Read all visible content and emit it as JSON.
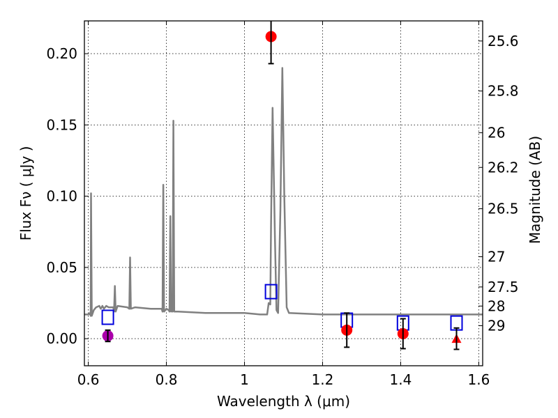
{
  "chart_data": {
    "type": "scatter",
    "title": "",
    "xlabel": "Wavelength  λ (μm)",
    "ylabel": "Flux  Fν  ( μJy )",
    "ylabel2": "Magnitude (AB)",
    "xlim": [
      0.59,
      1.61
    ],
    "ylim": [
      -0.019,
      0.223
    ],
    "grid": true,
    "x_ticks": [
      {
        "value": 0.6,
        "label": "0.6"
      },
      {
        "value": 0.8,
        "label": "0.8"
      },
      {
        "value": 1.0,
        "label": "1"
      },
      {
        "value": 1.2,
        "label": "1.2"
      },
      {
        "value": 1.4,
        "label": "1.4"
      },
      {
        "value": 1.6,
        "label": "1.6"
      }
    ],
    "y_ticks": [
      {
        "value": 0.0,
        "label": "0.00"
      },
      {
        "value": 0.05,
        "label": "0.05"
      },
      {
        "value": 0.1,
        "label": "0.10"
      },
      {
        "value": 0.15,
        "label": "0.15"
      },
      {
        "value": 0.2,
        "label": "0.20"
      }
    ],
    "y2_ticks": [
      {
        "flux": 0.2089,
        "label": "25.6"
      },
      {
        "flux": 0.1738,
        "label": "25.8"
      },
      {
        "flux": 0.1445,
        "label": "26"
      },
      {
        "flux": 0.1202,
        "label": "26.2"
      },
      {
        "flux": 0.0912,
        "label": "26.5"
      },
      {
        "flux": 0.0575,
        "label": "27"
      },
      {
        "flux": 0.0363,
        "label": "27.5"
      },
      {
        "flux": 0.0229,
        "label": "28"
      },
      {
        "flux": 0.0091,
        "label": "29"
      }
    ],
    "series": [
      {
        "kind": "line",
        "color": "#808080",
        "points": [
          [
            0.585,
            0.017
          ],
          [
            0.6,
            0.017
          ],
          [
            0.604,
            0.018
          ],
          [
            0.606,
            0.016
          ],
          [
            0.607,
            0.102
          ],
          [
            0.609,
            0.016
          ],
          [
            0.614,
            0.02
          ],
          [
            0.62,
            0.022
          ],
          [
            0.628,
            0.023
          ],
          [
            0.632,
            0.021
          ],
          [
            0.636,
            0.023
          ],
          [
            0.64,
            0.021
          ],
          [
            0.646,
            0.023
          ],
          [
            0.652,
            0.022
          ],
          [
            0.658,
            0.022
          ],
          [
            0.664,
            0.022
          ],
          [
            0.666,
            0.019
          ],
          [
            0.668,
            0.037
          ],
          [
            0.67,
            0.019
          ],
          [
            0.675,
            0.023
          ],
          [
            0.7,
            0.022
          ],
          [
            0.705,
            0.021
          ],
          [
            0.707,
            0.057
          ],
          [
            0.709,
            0.021
          ],
          [
            0.72,
            0.022
          ],
          [
            0.76,
            0.021
          ],
          [
            0.788,
            0.021
          ],
          [
            0.79,
            0.019
          ],
          [
            0.792,
            0.108
          ],
          [
            0.794,
            0.019
          ],
          [
            0.8,
            0.021
          ],
          [
            0.806,
            0.02
          ],
          [
            0.808,
            0.019
          ],
          [
            0.81,
            0.086
          ],
          [
            0.812,
            0.019
          ],
          [
            0.814,
            0.02
          ],
          [
            0.816,
            0.019
          ],
          [
            0.818,
            0.153
          ],
          [
            0.82,
            0.019
          ],
          [
            0.83,
            0.019
          ],
          [
            0.9,
            0.018
          ],
          [
            0.96,
            0.018
          ],
          [
            1.0,
            0.018
          ],
          [
            1.04,
            0.017
          ],
          [
            1.058,
            0.017
          ],
          [
            1.062,
            0.025
          ],
          [
            1.066,
            0.024
          ],
          [
            1.068,
            0.08
          ],
          [
            1.072,
            0.162
          ],
          [
            1.078,
            0.07
          ],
          [
            1.082,
            0.02
          ],
          [
            1.086,
            0.018
          ],
          [
            1.092,
            0.09
          ],
          [
            1.097,
            0.19
          ],
          [
            1.102,
            0.1
          ],
          [
            1.108,
            0.022
          ],
          [
            1.114,
            0.018
          ],
          [
            1.2,
            0.017
          ],
          [
            1.3,
            0.017
          ],
          [
            1.4,
            0.017
          ],
          [
            1.5,
            0.017
          ],
          [
            1.6,
            0.017
          ],
          [
            1.615,
            0.017
          ]
        ]
      },
      {
        "kind": "squares",
        "color": "#0000dd",
        "points": [
          [
            0.65,
            0.015
          ],
          [
            1.068,
            0.033
          ],
          [
            1.262,
            0.013
          ],
          [
            1.406,
            0.011
          ],
          [
            1.543,
            0.011
          ]
        ]
      },
      {
        "kind": "circles",
        "color": "#ff0000",
        "points": [
          {
            "x": 1.068,
            "y": 0.212,
            "err": 0.019
          },
          {
            "x": 1.262,
            "y": 0.006,
            "err": 0.012
          },
          {
            "x": 1.406,
            "y": 0.0035,
            "err": 0.0105
          }
        ]
      },
      {
        "kind": "circles",
        "color": "#aa00aa",
        "points": [
          {
            "x": 0.65,
            "y": 0.002,
            "err": 0.004
          }
        ]
      },
      {
        "kind": "triangles",
        "color": "#ff0000",
        "points": [
          {
            "x": 1.543,
            "y": 0.0,
            "err": 0.0075
          }
        ]
      }
    ]
  }
}
